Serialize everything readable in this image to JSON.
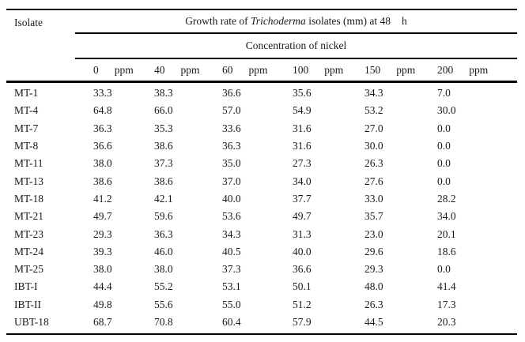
{
  "table": {
    "isolate_header": "Isolate",
    "title": {
      "prefix": "Growth rate of ",
      "species": "Trichoderma",
      "suffix": " isolates (mm) at 48",
      "hour": "h"
    },
    "subtitle": "Concentration of nickel",
    "columns": [
      {
        "value": "0",
        "unit": "ppm"
      },
      {
        "value": "40",
        "unit": "ppm"
      },
      {
        "value": "60",
        "unit": "ppm"
      },
      {
        "value": "100",
        "unit": "ppm"
      },
      {
        "value": "150",
        "unit": "ppm"
      },
      {
        "value": "200",
        "unit": "ppm"
      }
    ],
    "rows": [
      {
        "isolate": "MT-1",
        "values": [
          "33.3",
          "38.3",
          "36.6",
          "35.6",
          "34.3",
          "7.0"
        ]
      },
      {
        "isolate": "MT-4",
        "values": [
          "64.8",
          "66.0",
          "57.0",
          "54.9",
          "53.2",
          "30.0"
        ]
      },
      {
        "isolate": "MT-7",
        "values": [
          "36.3",
          "35.3",
          "33.6",
          "31.6",
          "27.0",
          "0.0"
        ]
      },
      {
        "isolate": "MT-8",
        "values": [
          "36.6",
          "38.6",
          "36.3",
          "31.6",
          "30.0",
          "0.0"
        ]
      },
      {
        "isolate": "MT-11",
        "values": [
          "38.0",
          "37.3",
          "35.0",
          "27.3",
          "26.3",
          "0.0"
        ]
      },
      {
        "isolate": "MT-13",
        "values": [
          "38.6",
          "38.6",
          "37.0",
          "34.0",
          "27.6",
          "0.0"
        ]
      },
      {
        "isolate": "MT-18",
        "values": [
          "41.2",
          "42.1",
          "40.0",
          "37.7",
          "33.0",
          "28.2"
        ]
      },
      {
        "isolate": "MT-21",
        "values": [
          "49.7",
          "59.6",
          "53.6",
          "49.7",
          "35.7",
          "34.0"
        ]
      },
      {
        "isolate": "MT-23",
        "values": [
          "29.3",
          "36.3",
          "34.3",
          "31.3",
          "23.0",
          "20.1"
        ]
      },
      {
        "isolate": "MT-24",
        "values": [
          "39.3",
          "46.0",
          "40.5",
          "40.0",
          "29.6",
          "18.6"
        ]
      },
      {
        "isolate": "MT-25",
        "values": [
          "38.0",
          "38.0",
          "37.3",
          "36.6",
          "29.3",
          "0.0"
        ]
      },
      {
        "isolate": "IBT-I",
        "values": [
          "44.4",
          "55.2",
          "53.1",
          "50.1",
          "48.0",
          "41.4"
        ]
      },
      {
        "isolate": "IBT-II",
        "values": [
          "49.8",
          "55.6",
          "55.0",
          "51.2",
          "26.3",
          "17.3"
        ]
      },
      {
        "isolate": "UBT-18",
        "values": [
          "68.7",
          "70.8",
          "60.4",
          "57.9",
          "44.5",
          "20.3"
        ]
      }
    ]
  }
}
